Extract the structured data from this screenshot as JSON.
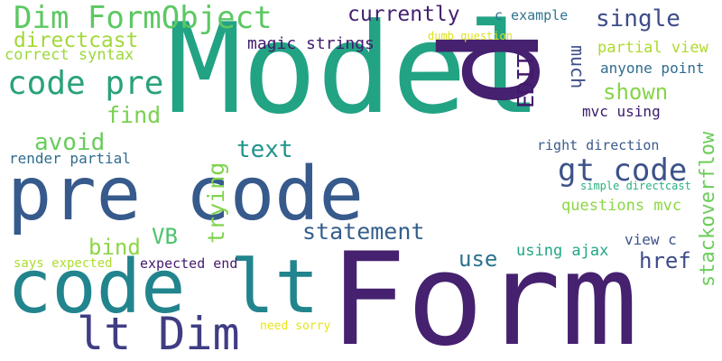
{
  "words": [
    {
      "text": "Model",
      "color": "#22a384"
    },
    {
      "text": "Form",
      "color": "#45216f"
    },
    {
      "text": "p",
      "color": "#45216f"
    },
    {
      "text": "pre code",
      "color": "#375a8c"
    },
    {
      "text": "code lt",
      "color": "#22848d"
    },
    {
      "text": "lt Dim",
      "color": "#3f3d83"
    },
    {
      "text": "Dim FormObject",
      "color": "#5cc861"
    },
    {
      "text": "code pre",
      "color": "#2aa27b"
    },
    {
      "text": "gt code",
      "color": "#3c5289"
    },
    {
      "text": "directcast",
      "color": "#a2d83a"
    },
    {
      "text": "currently",
      "color": "#45216f"
    },
    {
      "text": "single",
      "color": "#3e4c8a"
    },
    {
      "text": "correct syntax",
      "color": "#9bd83b"
    },
    {
      "text": "magic strings",
      "color": "#42196d"
    },
    {
      "text": "c example",
      "color": "#2d738e"
    },
    {
      "text": "dumb question",
      "color": "#dde319"
    },
    {
      "text": "partial view",
      "color": "#adda2e"
    },
    {
      "text": "anyone point",
      "color": "#2f6c8e"
    },
    {
      "text": "EDIT",
      "color": "#42186b"
    },
    {
      "text": "much",
      "color": "#3d4e8a"
    },
    {
      "text": "shown",
      "color": "#86d549"
    },
    {
      "text": "mvc using",
      "color": "#3a1b6a"
    },
    {
      "text": "find",
      "color": "#7ad151"
    },
    {
      "text": "avoid",
      "color": "#68cc5b"
    },
    {
      "text": "text",
      "color": "#1f958b"
    },
    {
      "text": "render partial",
      "color": "#2f6b8e"
    },
    {
      "text": "trying",
      "color": "#7fd34e"
    },
    {
      "text": "right direction",
      "color": "#3a5a8c"
    },
    {
      "text": "stackoverflow",
      "color": "#6ccd5a"
    },
    {
      "text": "simple directcast",
      "color": "#2ab07f"
    },
    {
      "text": "statement",
      "color": "#345f8d"
    },
    {
      "text": "questions mvc",
      "color": "#8bd646"
    },
    {
      "text": "VB",
      "color": "#4cc26c"
    },
    {
      "text": "bind",
      "color": "#8ed645"
    },
    {
      "text": "use",
      "color": "#2c728e"
    },
    {
      "text": "using ajax",
      "color": "#21a685"
    },
    {
      "text": "view c",
      "color": "#3b528b"
    },
    {
      "text": "href",
      "color": "#3e4a89"
    },
    {
      "text": "says expected",
      "color": "#addc30"
    },
    {
      "text": "expected end",
      "color": "#45186e"
    },
    {
      "text": "need sorry",
      "color": "#e7e419"
    }
  ]
}
